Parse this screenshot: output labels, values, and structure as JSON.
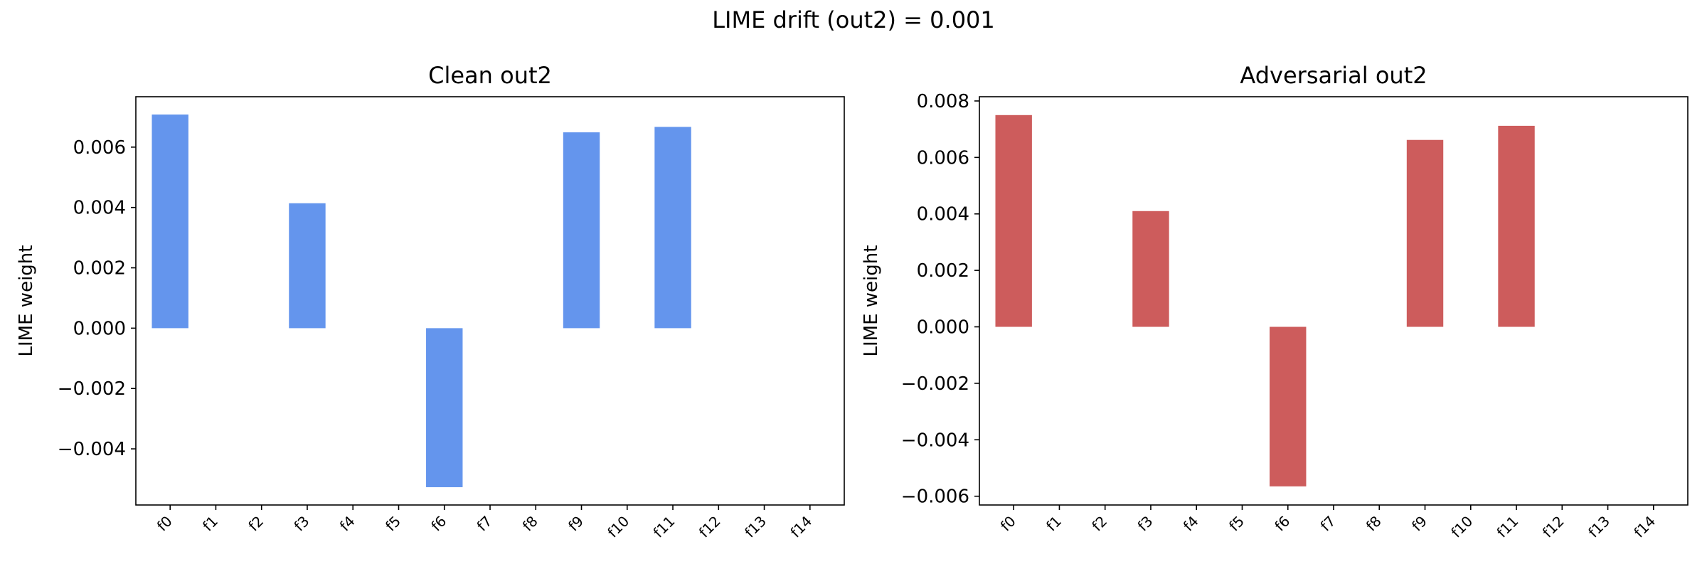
{
  "figure": {
    "suptitle": "LIME drift (out2) = 0.001"
  },
  "chart_data": [
    {
      "type": "bar",
      "title": "Clean out2",
      "xlabel": "",
      "ylabel": "LIME weight",
      "color": "#6495ED",
      "categories": [
        "f0",
        "f1",
        "f2",
        "f3",
        "f4",
        "f5",
        "f6",
        "f7",
        "f8",
        "f9",
        "f10",
        "f11",
        "f12",
        "f13",
        "f14"
      ],
      "values": [
        0.00708,
        0,
        0,
        0.00414,
        0,
        0,
        -0.00527,
        0,
        0,
        0.00649,
        0,
        0.00667,
        0,
        0,
        0
      ],
      "ylim": [
        -0.00586,
        0.00767
      ],
      "yticks": [
        -0.004,
        -0.002,
        0.0,
        0.002,
        0.004,
        0.006
      ],
      "ytick_labels": [
        "−0.004",
        "−0.002",
        "0.000",
        "0.002",
        "0.004",
        "0.006"
      ],
      "grid": false,
      "legend": "none"
    },
    {
      "type": "bar",
      "title": "Adversarial out2",
      "xlabel": "",
      "ylabel": "LIME weight",
      "color": "#CD5C5C",
      "categories": [
        "f0",
        "f1",
        "f2",
        "f3",
        "f4",
        "f5",
        "f6",
        "f7",
        "f8",
        "f9",
        "f10",
        "f11",
        "f12",
        "f13",
        "f14"
      ],
      "values": [
        0.0075,
        0,
        0,
        0.0041,
        0,
        0,
        -0.00565,
        0,
        0,
        0.00662,
        0,
        0.00712,
        0,
        0,
        0
      ],
      "ylim": [
        -0.00631,
        0.00815
      ],
      "yticks": [
        -0.006,
        -0.004,
        -0.002,
        0.0,
        0.002,
        0.004,
        0.006,
        0.008
      ],
      "ytick_labels": [
        "−0.006",
        "−0.004",
        "−0.002",
        "0.000",
        "0.002",
        "0.004",
        "0.006",
        "0.008"
      ],
      "grid": false,
      "legend": "none"
    }
  ]
}
